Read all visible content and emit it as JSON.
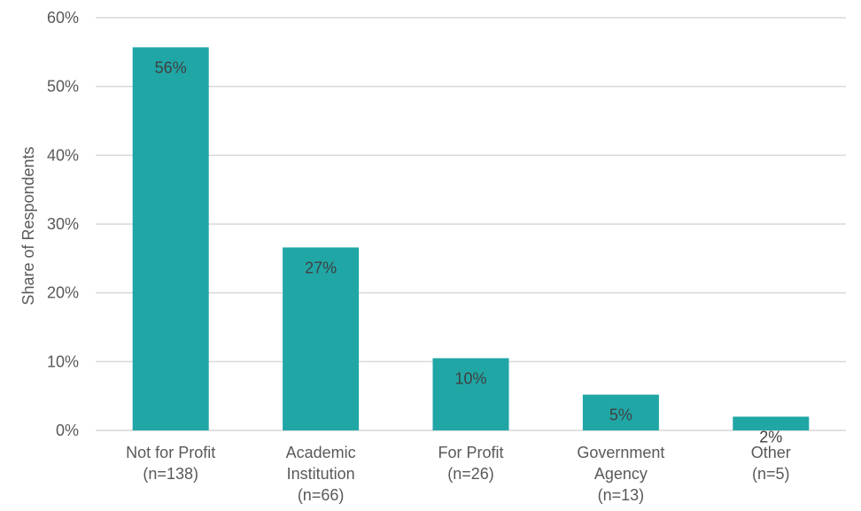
{
  "chart_data": {
    "type": "bar",
    "categories": [
      [
        "Not for Profit",
        "(n=138)"
      ],
      [
        "Academic",
        "Institution",
        "(n=66)"
      ],
      [
        "For Profit",
        "(n=26)"
      ],
      [
        "Government",
        "Agency",
        "(n=13)"
      ],
      [
        "Other",
        "(n=5)"
      ]
    ],
    "values": [
      55.7,
      26.6,
      10.5,
      5.2,
      2.0
    ],
    "data_labels": [
      "56%",
      "27%",
      "10%",
      "5%",
      "2%"
    ],
    "ylabel": "Share of Respondents",
    "ylim": [
      0,
      60
    ],
    "yticks": [
      0,
      10,
      20,
      30,
      40,
      50,
      60
    ],
    "ytick_labels": [
      "0%",
      "10%",
      "20%",
      "30%",
      "40%",
      "50%",
      "60%"
    ],
    "grid": true,
    "bar_color": "#21A6A6",
    "grid_color": "#D9D9D9"
  }
}
